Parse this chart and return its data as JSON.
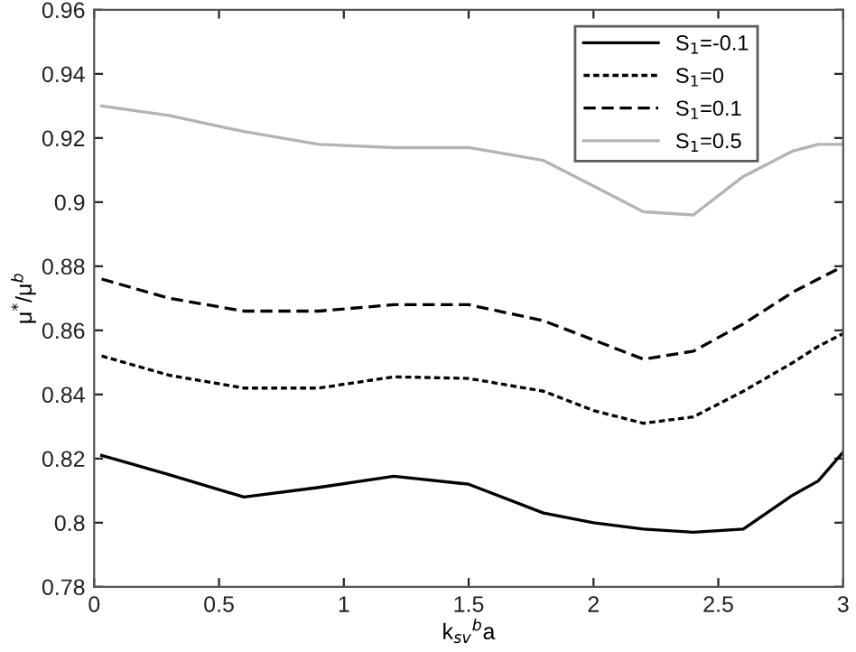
{
  "chart_data": {
    "type": "line",
    "xlabel": "k$_{sv}$$^{b}$a",
    "ylabel": "μ$^{*}$/μ$^{b}$",
    "xlim": [
      0,
      3
    ],
    "ylim": [
      0.78,
      0.96
    ],
    "xticks": [
      0,
      0.5,
      1,
      1.5,
      2,
      2.5,
      3
    ],
    "yticks": [
      0.78,
      0.8,
      0.82,
      0.84,
      0.86,
      0.88,
      0.9,
      0.92,
      0.94,
      0.96
    ],
    "grid": false,
    "legend": "top right",
    "marker": "none",
    "x": [
      0.03,
      0.3,
      0.6,
      0.9,
      1.2,
      1.5,
      1.8,
      2.0,
      2.2,
      2.4,
      2.6,
      2.8,
      2.9,
      3.0
    ],
    "series": [
      {
        "name": "S$_{1}$=-0.1",
        "color": "#000000",
        "line_style": "solid",
        "values": [
          0.821,
          0.815,
          0.808,
          0.811,
          0.8145,
          0.812,
          0.803,
          0.8,
          0.798,
          0.797,
          0.798,
          0.8087,
          0.813,
          0.822
        ]
      },
      {
        "name": "S$_{1}$=0",
        "color": "#000000",
        "line_style": "dotted",
        "values": [
          0.852,
          0.846,
          0.842,
          0.842,
          0.8455,
          0.845,
          0.841,
          0.835,
          0.831,
          0.833,
          0.841,
          0.85,
          0.855,
          0.859
        ]
      },
      {
        "name": "S$_{1}$=0.1",
        "color": "#000000",
        "line_style": "dashed",
        "values": [
          0.876,
          0.87,
          0.866,
          0.866,
          0.868,
          0.868,
          0.863,
          0.857,
          0.851,
          0.8535,
          0.862,
          0.872,
          0.876,
          0.88
        ]
      },
      {
        "name": "S$_{1}$=0.5",
        "color": "#b4b4b4",
        "line_style": "solid",
        "values": [
          0.93,
          0.927,
          0.922,
          0.918,
          0.917,
          0.917,
          0.913,
          0.905,
          0.897,
          0.896,
          0.908,
          0.916,
          0.918,
          0.918
        ]
      }
    ]
  }
}
